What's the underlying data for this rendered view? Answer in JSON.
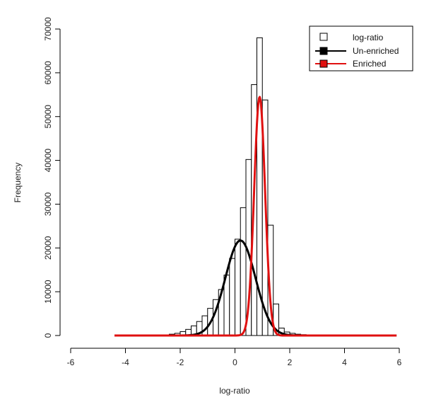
{
  "chart_data": {
    "type": "histogram",
    "xlabel": "log-ratio",
    "ylabel": "Frequency",
    "xlim": [
      -6,
      6
    ],
    "ylim": [
      0,
      70000
    ],
    "x_ticks": [
      -6,
      -4,
      -2,
      0,
      2,
      4,
      6
    ],
    "y_ticks": [
      0,
      10000,
      20000,
      30000,
      40000,
      50000,
      60000,
      70000
    ],
    "grid": false,
    "legend_position": "top-right",
    "bin_width": 0.2,
    "histogram": {
      "name": "log-ratio",
      "bin_starts": [
        -2.4,
        -2.2,
        -2.0,
        -1.8,
        -1.6,
        -1.4,
        -1.2,
        -1.0,
        -0.8,
        -0.6,
        -0.4,
        -0.2,
        0.0,
        0.2,
        0.4,
        0.6,
        0.8,
        1.0,
        1.2,
        1.4,
        1.6,
        1.8,
        2.0,
        2.2,
        2.4,
        2.6
      ],
      "counts": [
        300,
        500,
        900,
        1400,
        2200,
        3200,
        4500,
        6200,
        8200,
        10500,
        13800,
        17600,
        22000,
        29200,
        40200,
        57300,
        68000,
        53800,
        25200,
        7200,
        1700,
        800,
        500,
        300,
        200,
        100
      ],
      "color": "#000000"
    },
    "series": [
      {
        "name": "Un-enriched",
        "type": "normal_curve",
        "mean": 0.2,
        "sd": 0.55,
        "peak": 21700,
        "x_range": [
          -4.4,
          5.9
        ],
        "color": "#000000"
      },
      {
        "name": "Enriched",
        "type": "normal_curve",
        "mean": 0.9,
        "sd": 0.2,
        "peak": 54500,
        "x_range": [
          -4.4,
          5.9
        ],
        "color": "#e01010"
      }
    ],
    "legend": [
      {
        "label": "log-ratio",
        "marker": "open-square",
        "color": "#000000"
      },
      {
        "label": "Un-enriched",
        "marker": "filled-square-line",
        "color": "#000000"
      },
      {
        "label": "Enriched",
        "marker": "filled-square-line",
        "color": "#e01010"
      }
    ]
  }
}
